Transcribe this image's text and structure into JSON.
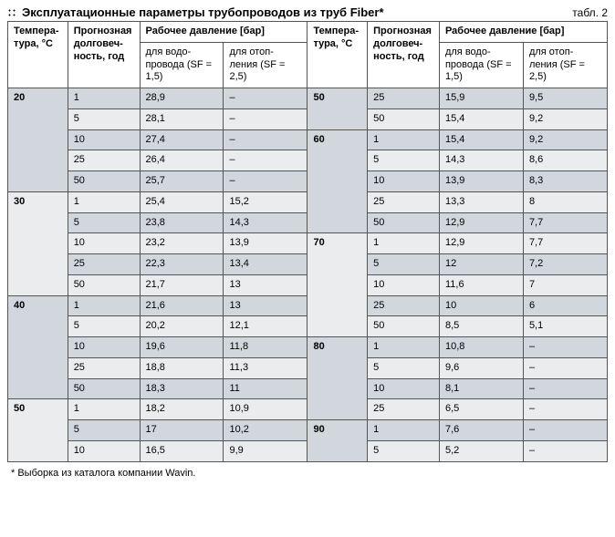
{
  "title": "Эксплуатационные параметры трубопроводов из труб Fiber*",
  "tableLabel": "табл. 2",
  "footnote": "* Выборка из каталога компании Wavin.",
  "colors": {
    "border": "#555555",
    "row_alt": "#d2d6dd",
    "row_base": "#eaecee"
  },
  "headers": {
    "temp": "Темпера-\nтура, °C",
    "dur": "Прогнозная долговеч-\nность, год",
    "pressure": "Рабочее давление [бар]",
    "p1": "для водо-\nпровода\n(SF = 1,5)",
    "p2": "для отоп-\nления\n(SF = 2,5)"
  },
  "groups": [
    {
      "temp": "20",
      "rows": [
        {
          "d": "1",
          "p1": "28,9",
          "p2": "–",
          "alt": true
        },
        {
          "d": "5",
          "p1": "28,1",
          "p2": "–",
          "alt": false
        },
        {
          "d": "10",
          "p1": "27,4",
          "p2": "–",
          "alt": true
        },
        {
          "d": "25",
          "p1": "26,4",
          "p2": "–",
          "alt": false
        },
        {
          "d": "50",
          "p1": "25,7",
          "p2": "–",
          "alt": true
        }
      ]
    },
    {
      "temp": "30",
      "rows": [
        {
          "d": "1",
          "p1": "25,4",
          "p2": "15,2",
          "alt": false
        },
        {
          "d": "5",
          "p1": "23,8",
          "p2": "14,3",
          "alt": true
        },
        {
          "d": "10",
          "p1": "23,2",
          "p2": "13,9",
          "alt": false
        },
        {
          "d": "25",
          "p1": "22,3",
          "p2": "13,4",
          "alt": true
        },
        {
          "d": "50",
          "p1": "21,7",
          "p2": "13",
          "alt": false
        }
      ]
    },
    {
      "temp": "40",
      "rows": [
        {
          "d": "1",
          "p1": "21,6",
          "p2": "13",
          "alt": true
        },
        {
          "d": "5",
          "p1": "20,2",
          "p2": "12,1",
          "alt": false
        },
        {
          "d": "10",
          "p1": "19,6",
          "p2": "11,8",
          "alt": true
        },
        {
          "d": "25",
          "p1": "18,8",
          "p2": "11,3",
          "alt": false
        },
        {
          "d": "50",
          "p1": "18,3",
          "p2": "11",
          "alt": true
        }
      ]
    },
    {
      "temp": "50",
      "first": true,
      "rows": [
        {
          "d": "1",
          "p1": "18,2",
          "p2": "10,9",
          "alt": false
        },
        {
          "d": "5",
          "p1": "17",
          "p2": "10,2",
          "alt": true
        },
        {
          "d": "10",
          "p1": "16,5",
          "p2": "9,9",
          "alt": false
        }
      ]
    },
    {
      "temp": "50",
      "cont": true,
      "rows": [
        {
          "d": "25",
          "p1": "15,9",
          "p2": "9,5",
          "alt": true
        },
        {
          "d": "50",
          "p1": "15,4",
          "p2": "9,2",
          "alt": false
        }
      ]
    },
    {
      "temp": "60",
      "rows": [
        {
          "d": "1",
          "p1": "15,4",
          "p2": "9,2",
          "alt": true
        },
        {
          "d": "5",
          "p1": "14,3",
          "p2": "8,6",
          "alt": false
        },
        {
          "d": "10",
          "p1": "13,9",
          "p2": "8,3",
          "alt": true
        },
        {
          "d": "25",
          "p1": "13,3",
          "p2": "8",
          "alt": false
        },
        {
          "d": "50",
          "p1": "12,9",
          "p2": "7,7",
          "alt": true
        }
      ]
    },
    {
      "temp": "70",
      "rows": [
        {
          "d": "1",
          "p1": "12,9",
          "p2": "7,7",
          "alt": false
        },
        {
          "d": "5",
          "p1": "12",
          "p2": "7,2",
          "alt": true
        },
        {
          "d": "10",
          "p1": "11,6",
          "p2": "7",
          "alt": false
        },
        {
          "d": "25",
          "p1": "10",
          "p2": "6",
          "alt": true
        },
        {
          "d": "50",
          "p1": "8,5",
          "p2": "5,1",
          "alt": false
        }
      ]
    },
    {
      "temp": "80",
      "rows": [
        {
          "d": "1",
          "p1": "10,8",
          "p2": "–",
          "alt": true
        },
        {
          "d": "5",
          "p1": "9,6",
          "p2": "–",
          "alt": false
        },
        {
          "d": "10",
          "p1": "8,1",
          "p2": "–",
          "alt": true
        },
        {
          "d": "25",
          "p1": "6,5",
          "p2": "–",
          "alt": false
        }
      ]
    },
    {
      "temp": "90",
      "rows": [
        {
          "d": "1",
          "p1": "7,6",
          "p2": "–",
          "alt": true
        },
        {
          "d": "5",
          "p1": "5,2",
          "p2": "–",
          "alt": false
        }
      ]
    }
  ]
}
